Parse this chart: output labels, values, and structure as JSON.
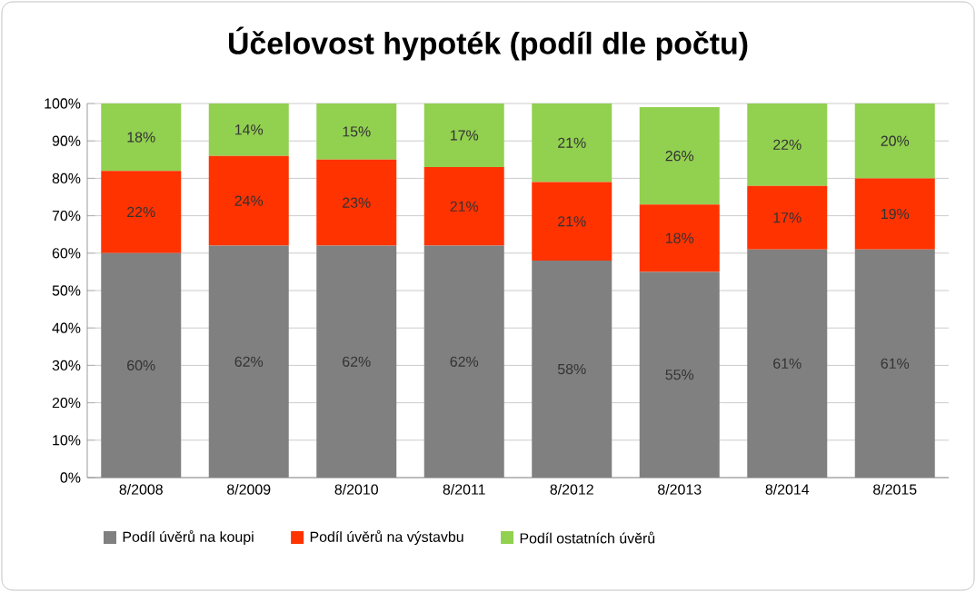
{
  "chart_data": {
    "type": "bar",
    "title": "Účelovost hypoték (podíl dle počtu)",
    "stacked": true,
    "grid": "y",
    "legend": "bottom",
    "categories": [
      "8/2008",
      "8/2009",
      "8/2010",
      "8/2011",
      "8/2012",
      "8/2013",
      "8/2014",
      "8/2015"
    ],
    "ylim": [
      0,
      100
    ],
    "yticks": [
      {
        "value": 0,
        "label": "0%"
      },
      {
        "value": 10,
        "label": "10%"
      },
      {
        "value": 20,
        "label": "20%"
      },
      {
        "value": 30,
        "label": "30%"
      },
      {
        "value": 40,
        "label": "40%"
      },
      {
        "value": 50,
        "label": "50%"
      },
      {
        "value": 60,
        "label": "60%"
      },
      {
        "value": 70,
        "label": "70%"
      },
      {
        "value": 80,
        "label": "80%"
      },
      {
        "value": 90,
        "label": "90%"
      },
      {
        "value": 100,
        "label": "100%"
      }
    ],
    "series": [
      {
        "name": "Podíl úvěrů na koupi",
        "color": "#808080",
        "values": [
          60,
          62,
          62,
          62,
          58,
          55,
          61,
          61
        ],
        "value_labels": [
          "60%",
          "62%",
          "62%",
          "62%",
          "58%",
          "55%",
          "61%",
          "61%"
        ]
      },
      {
        "name": "Podíl úvěrů na výstavbu",
        "color": "#ff3300",
        "values": [
          22,
          24,
          23,
          21,
          21,
          18,
          17,
          19
        ],
        "value_labels": [
          "22%",
          "24%",
          "23%",
          "21%",
          "21%",
          "18%",
          "17%",
          "19%"
        ]
      },
      {
        "name": "Podíl ostatních úvěrů",
        "color": "#92d050",
        "values": [
          18,
          14,
          15,
          17,
          21,
          26,
          22,
          20
        ],
        "value_labels": [
          "18%",
          "14%",
          "15%",
          "17%",
          "21%",
          "26%",
          "22%",
          "20%"
        ]
      }
    ]
  }
}
